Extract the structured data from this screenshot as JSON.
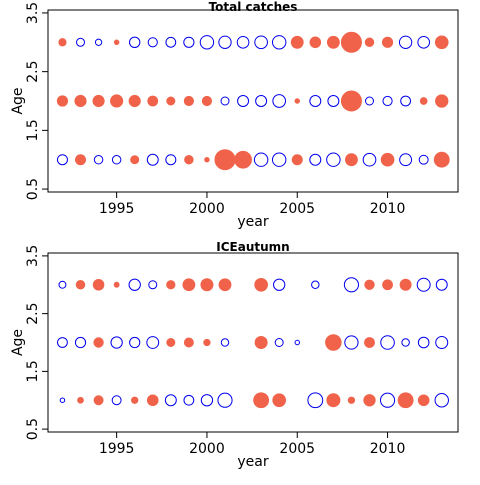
{
  "colors": {
    "positive": "#f0634a",
    "negative": "#0000ee",
    "axis": "#000000",
    "background": "#ffffff"
  },
  "chart_data": [
    {
      "type": "scatter",
      "title": "Total catches",
      "xlabel": "year",
      "ylabel": "Age",
      "xlim": [
        1991.2,
        2013.9
      ],
      "ylim": [
        0.45,
        3.55
      ],
      "xticks": [
        1995,
        2000,
        2005,
        2010
      ],
      "yticks": [
        0.5,
        1.5,
        2.5,
        3.5
      ],
      "xtick_labels": [
        "1995",
        "2000",
        "2005",
        "2010"
      ],
      "ytick_labels": [
        "0.5",
        "1.5",
        "2.5",
        "3.5"
      ],
      "ages": [
        1,
        2,
        3
      ],
      "years": [
        1992,
        1993,
        1994,
        1995,
        1996,
        1997,
        1998,
        1999,
        2000,
        2001,
        2002,
        2003,
        2004,
        2005,
        2006,
        2007,
        2008,
        2009,
        2010,
        2011,
        2012,
        2013
      ],
      "residuals": {
        "age1": [
          -0.25,
          0.25,
          -0.18,
          -0.18,
          0.16,
          -0.3,
          -0.25,
          0.18,
          0.05,
          1.0,
          0.7,
          -0.45,
          -0.45,
          0.25,
          -0.3,
          -0.45,
          0.35,
          -0.4,
          0.4,
          -0.35,
          -0.2,
          0.55
        ],
        "age2": [
          0.26,
          0.31,
          0.31,
          0.37,
          0.31,
          0.24,
          0.16,
          0.21,
          0.21,
          -0.16,
          -0.3,
          -0.3,
          -0.4,
          0.05,
          -0.3,
          -0.3,
          1.0,
          -0.16,
          -0.21,
          -0.24,
          0.11,
          0.38
        ],
        "age3": [
          0.13,
          -0.16,
          -0.1,
          0.05,
          -0.27,
          -0.21,
          -0.24,
          -0.26,
          -0.45,
          -0.38,
          -0.34,
          -0.4,
          -0.45,
          0.35,
          0.28,
          0.35,
          1.0,
          0.18,
          0.26,
          -0.38,
          -0.34,
          0.4
        ]
      }
    },
    {
      "type": "scatter",
      "title": "ICEautumn",
      "xlabel": "year",
      "ylabel": "Age",
      "xlim": [
        1991.2,
        2013.9
      ],
      "ylim": [
        0.45,
        3.55
      ],
      "xticks": [
        1995,
        2000,
        2005,
        2010
      ],
      "yticks": [
        0.5,
        1.5,
        2.5,
        3.5
      ],
      "xtick_labels": [
        "1995",
        "2000",
        "2005",
        "2010"
      ],
      "ytick_labels": [
        "0.5",
        "1.5",
        "2.5",
        "3.5"
      ],
      "ages": [
        1,
        2,
        3
      ],
      "years": [
        1992,
        1993,
        1994,
        1995,
        1996,
        1997,
        1998,
        1999,
        2000,
        2001,
        2002,
        2003,
        2004,
        2005,
        2006,
        2007,
        2008,
        2009,
        2010,
        2011,
        2012,
        2013
      ],
      "residuals": {
        "age1": [
          -0.05,
          0.08,
          0.2,
          -0.2,
          0.1,
          0.28,
          -0.3,
          -0.24,
          -0.32,
          -0.5,
          null,
          0.55,
          0.4,
          null,
          -0.55,
          0.42,
          0.1,
          0.32,
          -0.5,
          0.55,
          0.28,
          -0.45
        ],
        "age2": [
          -0.24,
          -0.26,
          0.22,
          -0.32,
          -0.26,
          -0.35,
          0.16,
          0.2,
          0.1,
          -0.14,
          null,
          0.36,
          -0.16,
          -0.05,
          null,
          0.6,
          -0.44,
          0.24,
          -0.46,
          -0.14,
          -0.28,
          -0.36
        ],
        "age3": [
          -0.12,
          0.18,
          0.28,
          0.06,
          -0.32,
          -0.16,
          0.17,
          0.35,
          0.36,
          0.35,
          null,
          0.4,
          -0.32,
          null,
          -0.14,
          null,
          -0.5,
          0.22,
          0.24,
          0.3,
          -0.42,
          -0.3
        ]
      }
    }
  ]
}
